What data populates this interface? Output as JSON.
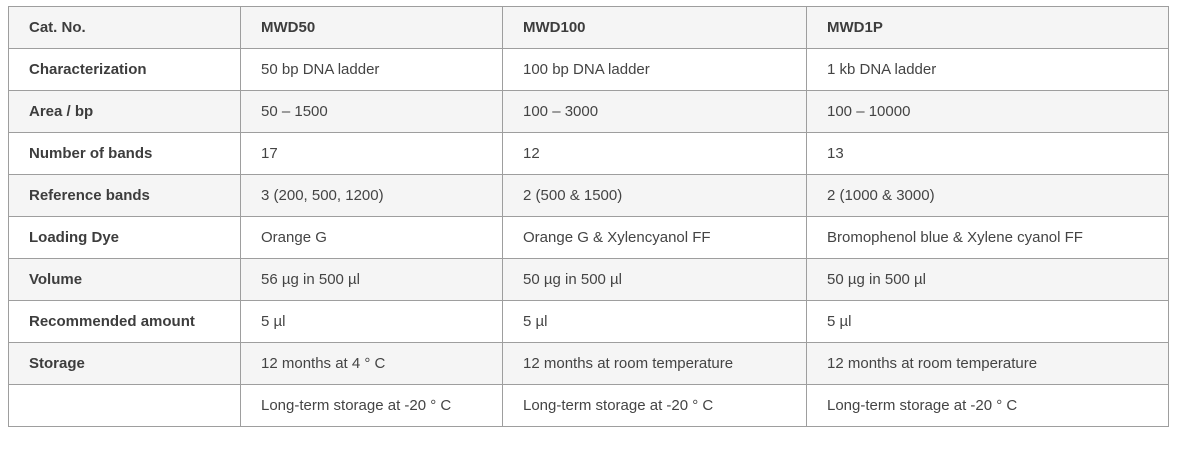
{
  "table": {
    "header": [
      "Cat. No.",
      "MWD50",
      "MWD100",
      "MWD1P"
    ],
    "rows": [
      {
        "label": "Characterization",
        "cells": [
          "50 bp DNA ladder",
          "100 bp DNA ladder",
          "1 kb DNA ladder"
        ]
      },
      {
        "label": "Area / bp",
        "cells": [
          "50 – 1500",
          "100 – 3000",
          "100 – 10000"
        ]
      },
      {
        "label": "Number of bands",
        "cells": [
          "17",
          "12",
          "13"
        ]
      },
      {
        "label": "Reference bands",
        "cells": [
          "3 (200, 500, 1200)",
          "2 (500 & 1500)",
          "2 (1000 & 3000)"
        ]
      },
      {
        "label": "Loading Dye",
        "cells": [
          "Orange G",
          "Orange G & Xylencyanol FF",
          "Bromophenol blue & Xylene cyanol FF"
        ]
      },
      {
        "label": "Volume",
        "cells": [
          "56 µg in 500 µl",
          "50 µg in 500 µl",
          "50 µg in 500 µl"
        ]
      },
      {
        "label": "Recommended amount",
        "cells": [
          "5 µl",
          "5 µl",
          "5 µl"
        ]
      },
      {
        "label": "Storage",
        "cells": [
          "12 months at 4 ° C",
          "12 months at room temperature",
          "12 months at room temperature"
        ]
      },
      {
        "label": "",
        "cells": [
          "Long-term storage at -20 ° C",
          "Long-term storage at -20 ° C",
          "Long-term storage at -20 ° C"
        ]
      }
    ],
    "colors": {
      "border": "#9e9e9e",
      "shaded_row": "#f5f5f5",
      "text": "#444444"
    }
  }
}
